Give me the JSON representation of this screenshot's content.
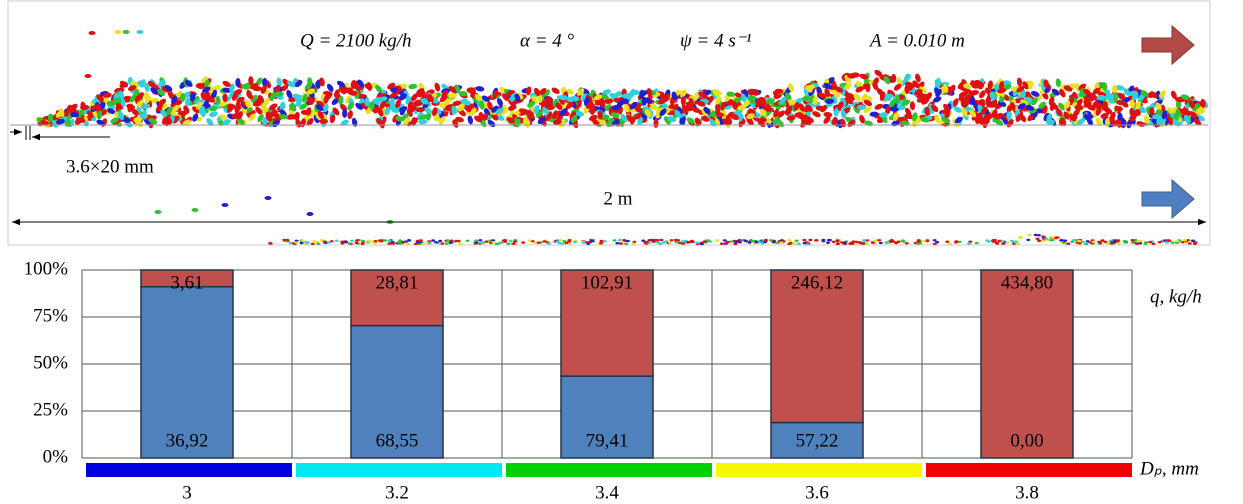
{
  "chart_data": {
    "type": "bar",
    "stack": "percent",
    "annotations": [
      "Q = 2100 kg/h",
      "α = 4 °",
      "ψ = 4 s⁻¹",
      "A = 0.010 m",
      "3.6×20 mm",
      "2 m"
    ],
    "categories": [
      "3",
      "3.2",
      "3.4",
      "3.6",
      "3.8"
    ],
    "category_colors": [
      "#0000e0",
      "#00e8f0",
      "#00d000",
      "#f8f800",
      "#f00000"
    ],
    "series": [
      {
        "color": "#4f81bd",
        "values": [
          36.92,
          68.55,
          79.41,
          57.22,
          0.0
        ],
        "value_labels": [
          "36,92",
          "68,55",
          "79,41",
          "57,22",
          "0,00"
        ]
      },
      {
        "color": "#c0504d",
        "values": [
          3.61,
          28.81,
          102.91,
          246.12,
          434.8
        ],
        "value_labels": [
          "3,61",
          "28,81",
          "102,91",
          "246,12",
          "434,80"
        ]
      }
    ],
    "ylim": [
      0,
      100
    ],
    "yticks": [
      {
        "value": 0,
        "label": "0%"
      },
      {
        "value": 25,
        "label": "25%"
      },
      {
        "value": 50,
        "label": "50%"
      },
      {
        "value": 75,
        "label": "75%"
      },
      {
        "value": 100,
        "label": "100%"
      }
    ],
    "data_label_title": "q, kg/h",
    "x_label": "Dₚ, mm",
    "grid": true
  }
}
